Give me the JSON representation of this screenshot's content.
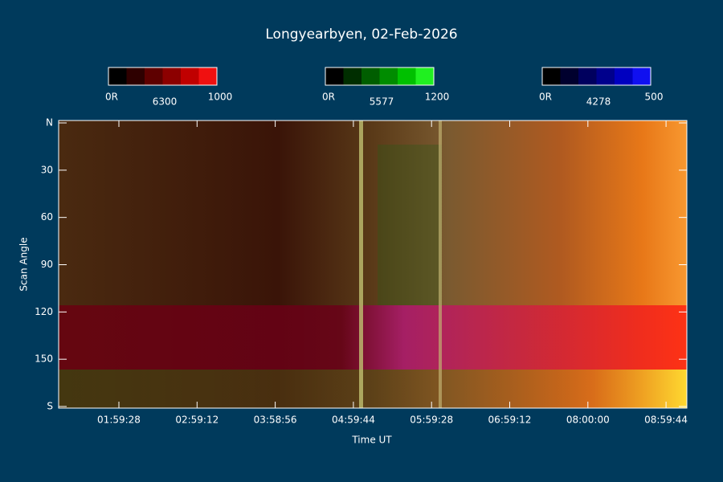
{
  "title": "Longyearbyen, 02-Feb-2026",
  "colorbars": [
    {
      "min_label": "0R",
      "name": "6300",
      "max_label": "1000",
      "colors": [
        "#000000",
        "#2e0000",
        "#5e0000",
        "#8c0000",
        "#c00000",
        "#f01010"
      ]
    },
    {
      "min_label": "0R",
      "name": "5577",
      "max_label": "1200",
      "colors": [
        "#000000",
        "#002e00",
        "#005e00",
        "#008c00",
        "#00c000",
        "#20f020"
      ]
    },
    {
      "min_label": "0R",
      "name": "4278",
      "max_label": "500",
      "colors": [
        "#000000",
        "#00002e",
        "#00005e",
        "#00008c",
        "#0000c0",
        "#1010f0"
      ]
    }
  ],
  "y_axis": {
    "label": "Scan Angle",
    "lim": [
      0,
      180
    ],
    "ticks": [
      {
        "value": 0,
        "label": "N"
      },
      30,
      60,
      90,
      120,
      150,
      {
        "value": 180,
        "label": "S"
      }
    ]
  },
  "x_axis": {
    "label": "Time UT",
    "ticks": [
      "01:59:28",
      "02:59:12",
      "03:58:56",
      "04:59:44",
      "05:59:28",
      "06:59:12",
      "08:00:00",
      "08:59:44"
    ]
  }
}
